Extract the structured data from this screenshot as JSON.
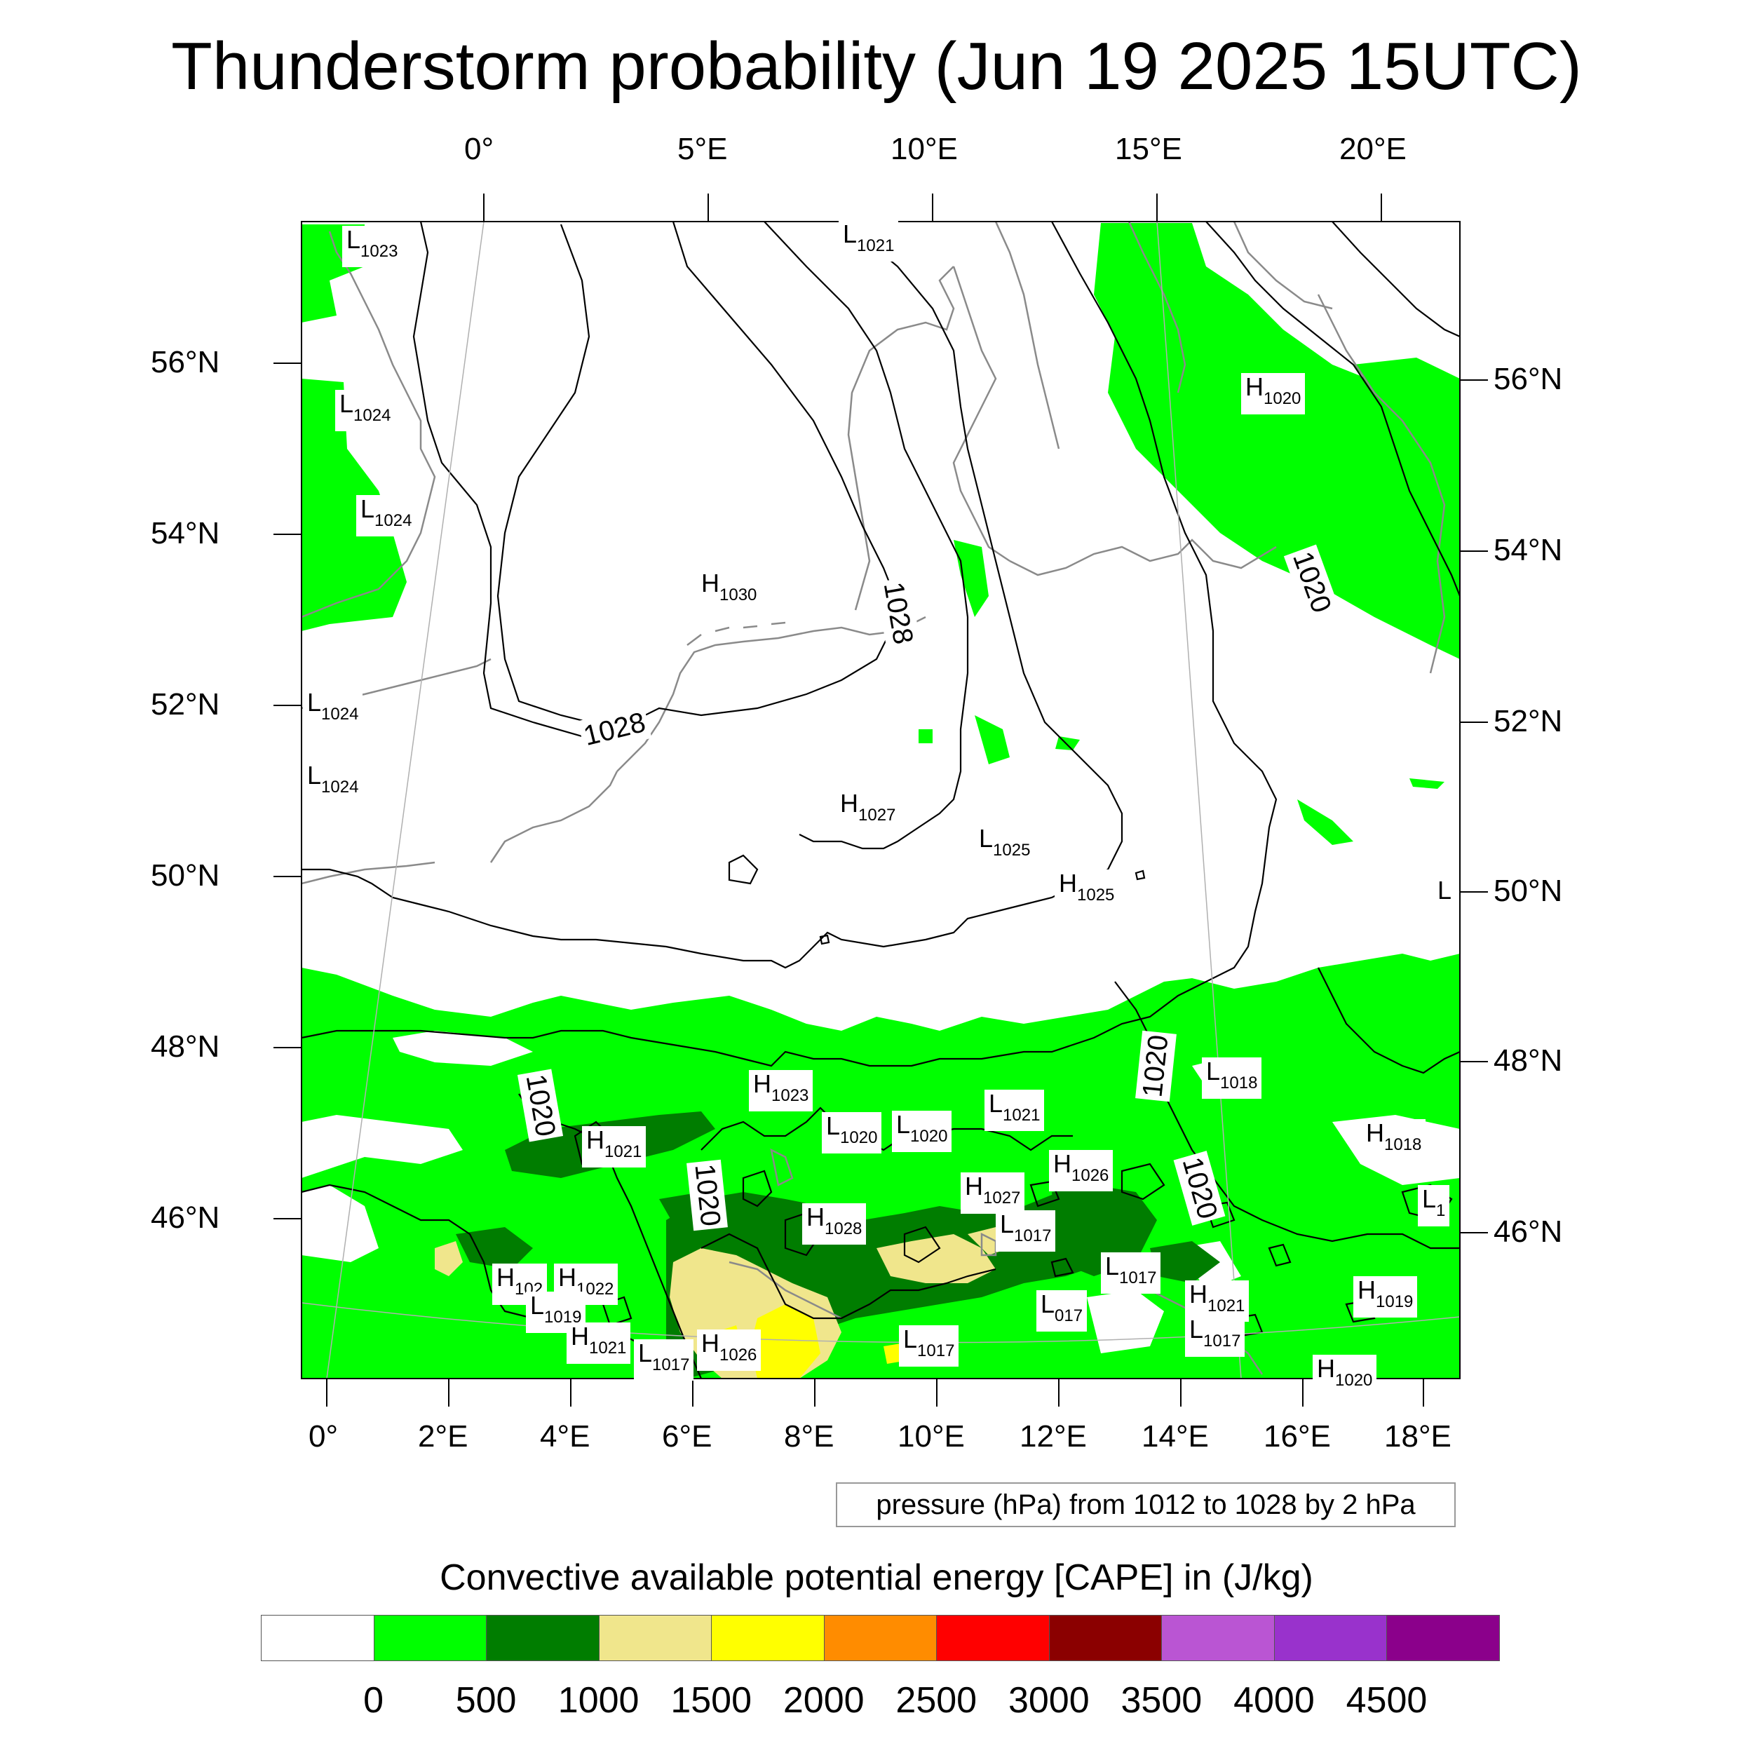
{
  "title": "Thunderstorm probability (Jun 19 2025 15UTC)",
  "top_lon_labels": [
    "0°",
    "5°E",
    "10°E",
    "15°E",
    "20°E"
  ],
  "left_lat_labels": [
    "56°N",
    "54°N",
    "52°N",
    "50°N",
    "48°N",
    "46°N"
  ],
  "right_lat_labels": [
    "56°N",
    "54°N",
    "52°N",
    "50°N",
    "48°N",
    "46°N"
  ],
  "bottom_lon_labels": [
    "0°",
    "2°E",
    "4°E",
    "6°E",
    "8°E",
    "10°E",
    "12°E",
    "14°E",
    "16°E",
    "18°E"
  ],
  "contour_info": "pressure (hPa) from 1012 to 1028 by 2 hPa",
  "colorbar": {
    "title": "Convective available potential energy [CAPE] in (J/kg)",
    "colors": [
      "#ffffff",
      "#00ff00",
      "#007d00",
      "#f0e68c",
      "#ffff00",
      "#ff8c00",
      "#ff0000",
      "#8b0000",
      "#ba55d3",
      "#9932cc",
      "#8b008b"
    ],
    "labels": [
      "0",
      "500",
      "1000",
      "1500",
      "2000",
      "2500",
      "3000",
      "3500",
      "4000",
      "4500"
    ]
  },
  "pressure_labels": [
    {
      "type": "L",
      "value": "1023"
    },
    {
      "type": "L",
      "value": "1021"
    },
    {
      "type": "L",
      "value": "1024"
    },
    {
      "type": "L",
      "value": "1024"
    },
    {
      "type": "L",
      "value": "1024"
    },
    {
      "type": "L",
      "value": "1024"
    },
    {
      "type": "H",
      "value": "1030"
    },
    {
      "type": "H",
      "value": "1027"
    },
    {
      "type": "L",
      "value": "1025"
    },
    {
      "type": "H",
      "value": "1025"
    },
    {
      "type": "H",
      "value": "1020"
    },
    {
      "type": "L",
      "value": ""
    },
    {
      "type": "H",
      "value": "1023"
    },
    {
      "type": "L",
      "value": "1020"
    },
    {
      "type": "L",
      "value": "1020"
    },
    {
      "type": "L",
      "value": "1021"
    },
    {
      "type": "L",
      "value": "1018"
    },
    {
      "type": "H",
      "value": "1018"
    },
    {
      "type": "H",
      "value": "1021"
    },
    {
      "type": "H",
      "value": "1026"
    },
    {
      "type": "H",
      "value": "1027"
    },
    {
      "type": "L",
      "value": "1017"
    },
    {
      "type": "H",
      "value": "1028"
    },
    {
      "type": "L",
      "value": "1"
    },
    {
      "type": "L",
      "value": "1017"
    },
    {
      "type": "H",
      "value": "102"
    },
    {
      "type": "H",
      "value": "1022"
    },
    {
      "type": "L",
      "value": "1019"
    },
    {
      "type": "H",
      "value": "1021"
    },
    {
      "type": "H",
      "value": "1019"
    },
    {
      "type": "L",
      "value": "017"
    },
    {
      "type": "H",
      "value": "1021"
    },
    {
      "type": "L",
      "value": "1017"
    },
    {
      "type": "H",
      "value": "1021"
    },
    {
      "type": "L",
      "value": "1017"
    },
    {
      "type": "H",
      "value": "1026"
    },
    {
      "type": "L",
      "value": "1017"
    },
    {
      "type": "H",
      "value": "1020"
    }
  ],
  "isobar_labels": [
    "1028",
    "1028",
    "1020",
    "1020",
    "1020",
    "1020",
    "1020",
    "1020"
  ]
}
